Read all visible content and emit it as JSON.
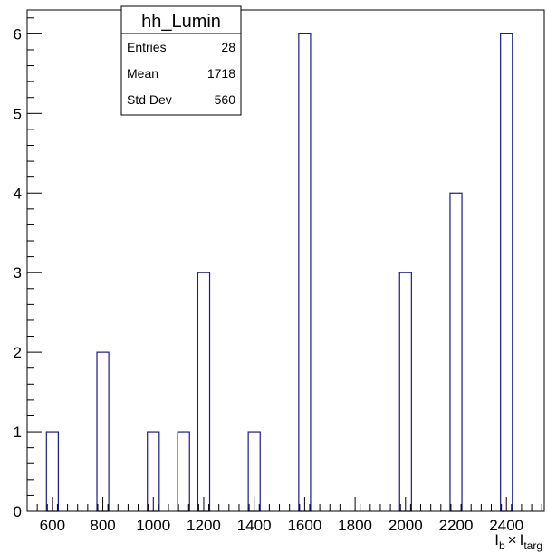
{
  "chart_data": {
    "type": "bar",
    "title": "",
    "xlabel": "I_b × I_targ",
    "ylabel": "",
    "xlim": [
      500,
      2550
    ],
    "ylim": [
      0,
      6.3
    ],
    "bin_width": 47,
    "x_ticks": [
      600,
      800,
      1000,
      1200,
      1400,
      1600,
      1800,
      2000,
      2200,
      2400
    ],
    "y_ticks": [
      0,
      1,
      2,
      3,
      4,
      5,
      6
    ],
    "bins": [
      {
        "x": 600,
        "value": 1
      },
      {
        "x": 800,
        "value": 2
      },
      {
        "x": 1000,
        "value": 1
      },
      {
        "x": 1120,
        "value": 1
      },
      {
        "x": 1200,
        "value": 3
      },
      {
        "x": 1400,
        "value": 1
      },
      {
        "x": 1600,
        "value": 6
      },
      {
        "x": 2000,
        "value": 3
      },
      {
        "x": 2200,
        "value": 4
      },
      {
        "x": 2400,
        "value": 6
      }
    ],
    "bar_color": "#1a1a8c",
    "grid": false,
    "legend": "none",
    "stats_box": {
      "title": "hh_Lumin",
      "placement": "top-left",
      "rows": [
        {
          "label": "Entries",
          "value": "28"
        },
        {
          "label": "Mean",
          "value": "1718"
        },
        {
          "label": "Std Dev",
          "value": "560"
        }
      ]
    },
    "xlabel_main": "I",
    "xlabel_sub1": "b",
    "xlabel_times": "×",
    "xlabel_sub2": "targ"
  }
}
